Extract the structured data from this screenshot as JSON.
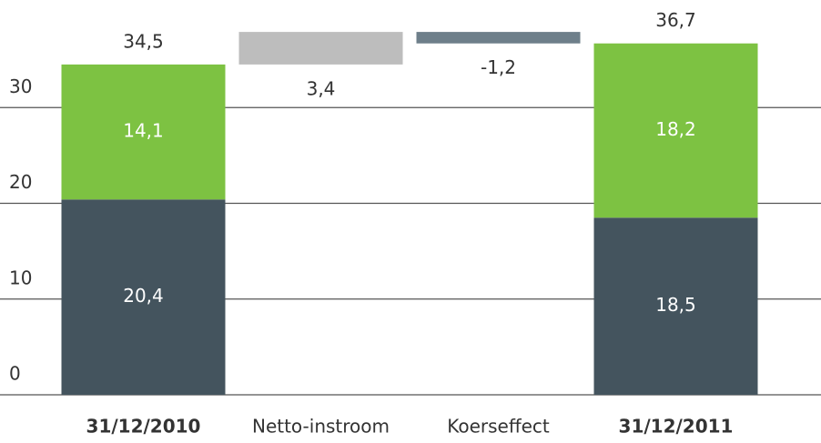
{
  "chart_data": {
    "type": "waterfall",
    "categories": [
      "31/12/2010",
      "Netto-instroom",
      "Koerseffect",
      "31/12/2011"
    ],
    "bold_categories": [
      true,
      false,
      false,
      true
    ],
    "series": [
      {
        "color": "#44545e",
        "values": [
          20.4,
          null,
          null,
          18.5
        ],
        "value_labels": [
          "20,4",
          null,
          null,
          "18,5"
        ]
      },
      {
        "color": "#7dc242",
        "values": [
          14.1,
          null,
          null,
          18.2
        ],
        "value_labels": [
          "14,1",
          null,
          null,
          "18,2"
        ]
      }
    ],
    "changes": {
      "colors": [
        null,
        "#bdbdbd",
        "#6e7f8a",
        null
      ],
      "values": [
        null,
        3.4,
        -1.2,
        null
      ],
      "value_labels": [
        null,
        "3,4",
        "-1,2",
        null
      ]
    },
    "totals": {
      "values": [
        34.5,
        null,
        null,
        36.7
      ],
      "value_labels": [
        "34,5",
        null,
        null,
        "36,7"
      ]
    },
    "ylim": [
      0,
      40
    ],
    "yticks": [
      0,
      10,
      20,
      30
    ],
    "grid": true
  }
}
